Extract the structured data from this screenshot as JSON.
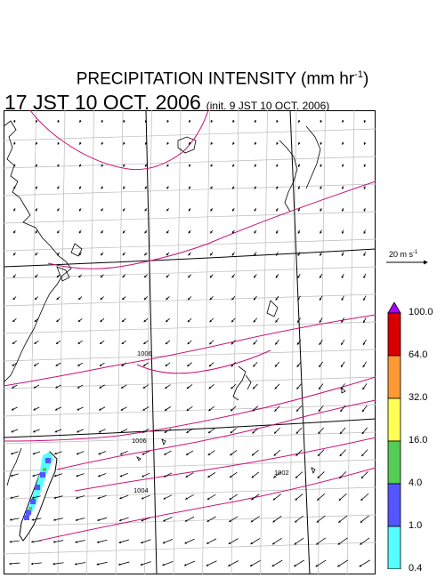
{
  "title": {
    "main": "PRECIPITATION INTENSITY (mm hr",
    "exp": "-1",
    "close": ")"
  },
  "subtitle": {
    "time": "17 JST 10 OCT. 2006",
    "init": "(init. 9 JST 10 OCT. 2006)"
  },
  "scale": {
    "label": "20 m s",
    "exp": "-1"
  },
  "colorbar": {
    "labels": [
      "100.0",
      "64.0",
      "32.0",
      "16.0",
      "4.0",
      "1.0",
      "0.4"
    ],
    "colors": [
      "#d80000",
      "#ff9933",
      "#ffff55",
      "#55cc55",
      "#5555ff",
      "#55ffff"
    ],
    "top_arrow_color": "#b000ff",
    "bottom_arrow_color": "#ffffff"
  },
  "map": {
    "isobar_labels": [
      "1006",
      "1006",
      "1004",
      "1002"
    ],
    "isobar_color": "#cc1177",
    "grid_color": "#bbbbbb",
    "rain_colors": [
      "#55ffff",
      "#5555ff",
      "#55cc55"
    ]
  }
}
